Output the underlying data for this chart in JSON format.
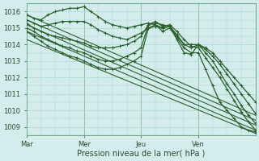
{
  "title": "",
  "xlabel": "Pression niveau de la mer( hPa )",
  "ylabel": "",
  "xlim": [
    0,
    96
  ],
  "ylim": [
    1008.5,
    1016.5
  ],
  "yticks": [
    1009,
    1010,
    1011,
    1012,
    1013,
    1014,
    1015,
    1016
  ],
  "xtick_pos_named": [
    0,
    24,
    48,
    72
  ],
  "xtick_labels_named": [
    "Mar",
    "Mer",
    "Jeu",
    "Ven"
  ],
  "bg_color": "#d4ecec",
  "grid_color": "#a8d8cc",
  "line_color": "#2a5e2a",
  "line_width": 0.9,
  "marker": "+",
  "marker_size": 3,
  "vline_positions": [
    24,
    48,
    72
  ],
  "series": [
    {
      "x": [
        0,
        3,
        6,
        9,
        12,
        15,
        18,
        21,
        24,
        27,
        30,
        33,
        36,
        39,
        42,
        45,
        48,
        51,
        54,
        57,
        60,
        63,
        66,
        69,
        72,
        75,
        78,
        81,
        84,
        87,
        90,
        93,
        96
      ],
      "y": [
        1015.8,
        1015.6,
        1015.5,
        1015.8,
        1016.0,
        1016.1,
        1016.2,
        1016.2,
        1016.3,
        1016.0,
        1015.7,
        1015.4,
        1015.2,
        1015.1,
        1015.0,
        1015.1,
        1015.2,
        1015.3,
        1015.2,
        1015.0,
        1015.1,
        1014.5,
        1014.0,
        1014.0,
        1014.0,
        1013.8,
        1013.5,
        1013.0,
        1012.5,
        1012.0,
        1011.5,
        1011.0,
        1010.5
      ],
      "has_markers": true
    },
    {
      "x": [
        0,
        3,
        6,
        9,
        12,
        15,
        18,
        21,
        24,
        27,
        30,
        33,
        36,
        39,
        42,
        45,
        48,
        51,
        54,
        57,
        60,
        63,
        66,
        69,
        72,
        75,
        78,
        81,
        84,
        87,
        90,
        93,
        96
      ],
      "y": [
        1015.5,
        1015.3,
        1015.1,
        1015.2,
        1015.3,
        1015.4,
        1015.4,
        1015.4,
        1015.4,
        1015.2,
        1014.9,
        1014.7,
        1014.5,
        1014.4,
        1014.3,
        1014.5,
        1014.7,
        1015.0,
        1015.1,
        1015.0,
        1015.1,
        1014.3,
        1013.5,
        1013.4,
        1014.0,
        1013.7,
        1013.3,
        1012.8,
        1012.2,
        1011.6,
        1011.0,
        1010.4,
        1009.8
      ],
      "has_markers": true
    },
    {
      "x": [
        0,
        3,
        6,
        9,
        12,
        15,
        18,
        21,
        24,
        27,
        30,
        33,
        36,
        39,
        42,
        45,
        48,
        51,
        54,
        57,
        60,
        63,
        66,
        69,
        72,
        75,
        78,
        81,
        84,
        87,
        90,
        93,
        96
      ],
      "y": [
        1015.3,
        1015.0,
        1014.8,
        1014.6,
        1014.5,
        1014.4,
        1014.3,
        1014.2,
        1014.1,
        1013.9,
        1013.8,
        1013.8,
        1013.8,
        1013.9,
        1014.0,
        1014.2,
        1014.5,
        1015.2,
        1015.3,
        1015.2,
        1015.1,
        1014.6,
        1014.0,
        1013.8,
        1014.0,
        1013.5,
        1013.0,
        1012.3,
        1011.6,
        1011.0,
        1010.3,
        1009.7,
        1009.2
      ],
      "has_markers": true
    },
    {
      "x": [
        0,
        3,
        6,
        9,
        12,
        15,
        18,
        21,
        24,
        27,
        30,
        33,
        36,
        39,
        42,
        45,
        48,
        51,
        54,
        57,
        60,
        63,
        66,
        69,
        72,
        75,
        78,
        81,
        84,
        87,
        90,
        93,
        96
      ],
      "y": [
        1015.0,
        1014.8,
        1014.5,
        1014.3,
        1014.1,
        1013.9,
        1013.8,
        1013.6,
        1013.5,
        1013.3,
        1013.1,
        1013.0,
        1013.0,
        1013.1,
        1013.3,
        1013.5,
        1013.8,
        1015.2,
        1015.4,
        1015.1,
        1015.2,
        1014.8,
        1014.3,
        1013.9,
        1013.8,
        1013.2,
        1012.6,
        1012.0,
        1011.3,
        1010.6,
        1009.9,
        1009.3,
        1008.8
      ],
      "has_markers": true
    },
    {
      "x": [
        0,
        3,
        6,
        9,
        12,
        15,
        18,
        21,
        24,
        27,
        30,
        33,
        36,
        39,
        42,
        45,
        48,
        51,
        54,
        57,
        60,
        63,
        66,
        69,
        72,
        75,
        78,
        81,
        84,
        87,
        90,
        93,
        96
      ],
      "y": [
        1014.8,
        1014.5,
        1014.2,
        1013.9,
        1013.7,
        1013.5,
        1013.3,
        1013.2,
        1013.0,
        1012.8,
        1012.6,
        1012.5,
        1012.5,
        1012.6,
        1012.8,
        1013.0,
        1013.3,
        1015.0,
        1015.2,
        1014.8,
        1015.0,
        1014.4,
        1013.8,
        1013.5,
        1013.5,
        1012.5,
        1011.5,
        1010.5,
        1010.0,
        1009.5,
        1009.0,
        1008.8,
        1008.7
      ],
      "has_markers": true
    },
    {
      "x": [
        0,
        96
      ],
      "y": [
        1015.8,
        1009.7
      ],
      "has_markers": false
    },
    {
      "x": [
        0,
        96
      ],
      "y": [
        1015.5,
        1009.4
      ],
      "has_markers": false
    },
    {
      "x": [
        0,
        96
      ],
      "y": [
        1015.2,
        1009.1
      ],
      "has_markers": false
    },
    {
      "x": [
        0,
        96
      ],
      "y": [
        1014.8,
        1008.8
      ],
      "has_markers": false
    },
    {
      "x": [
        0,
        96
      ],
      "y": [
        1014.3,
        1008.6
      ],
      "has_markers": false
    }
  ]
}
